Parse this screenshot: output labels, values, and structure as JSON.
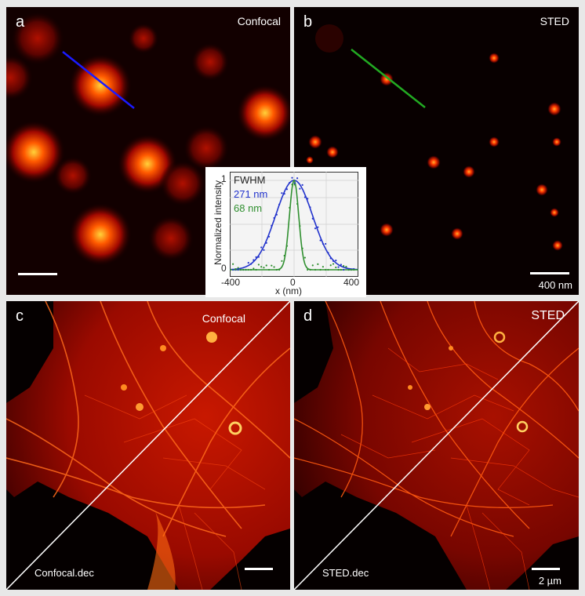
{
  "panels": {
    "a": {
      "letter": "a",
      "label": "Confocal"
    },
    "b": {
      "letter": "b",
      "label": "STED",
      "scale_label": "400 nm"
    },
    "c": {
      "letter": "c",
      "label_top": "Confocal",
      "label_bottom": "Confocal.dec"
    },
    "d": {
      "letter": "d",
      "label_top": "STED",
      "label_bottom": "STED.dec",
      "scale_label": "2 µm"
    }
  },
  "inset": {
    "legend_title": "FWHM",
    "series": [
      {
        "label": "271 nm",
        "color": "#2233cc"
      },
      {
        "label": "68 nm",
        "color": "#2f8f2f"
      }
    ],
    "ylabel": "Normalized intensity",
    "xlabel": "x (nm)",
    "xticks": [
      "-400",
      "0",
      "400"
    ],
    "yticks": [
      "0",
      "1"
    ]
  },
  "colors": {
    "confocal_line": "#1a1aff",
    "sted_line": "#22aa22",
    "hot": "#ff3a00"
  }
}
